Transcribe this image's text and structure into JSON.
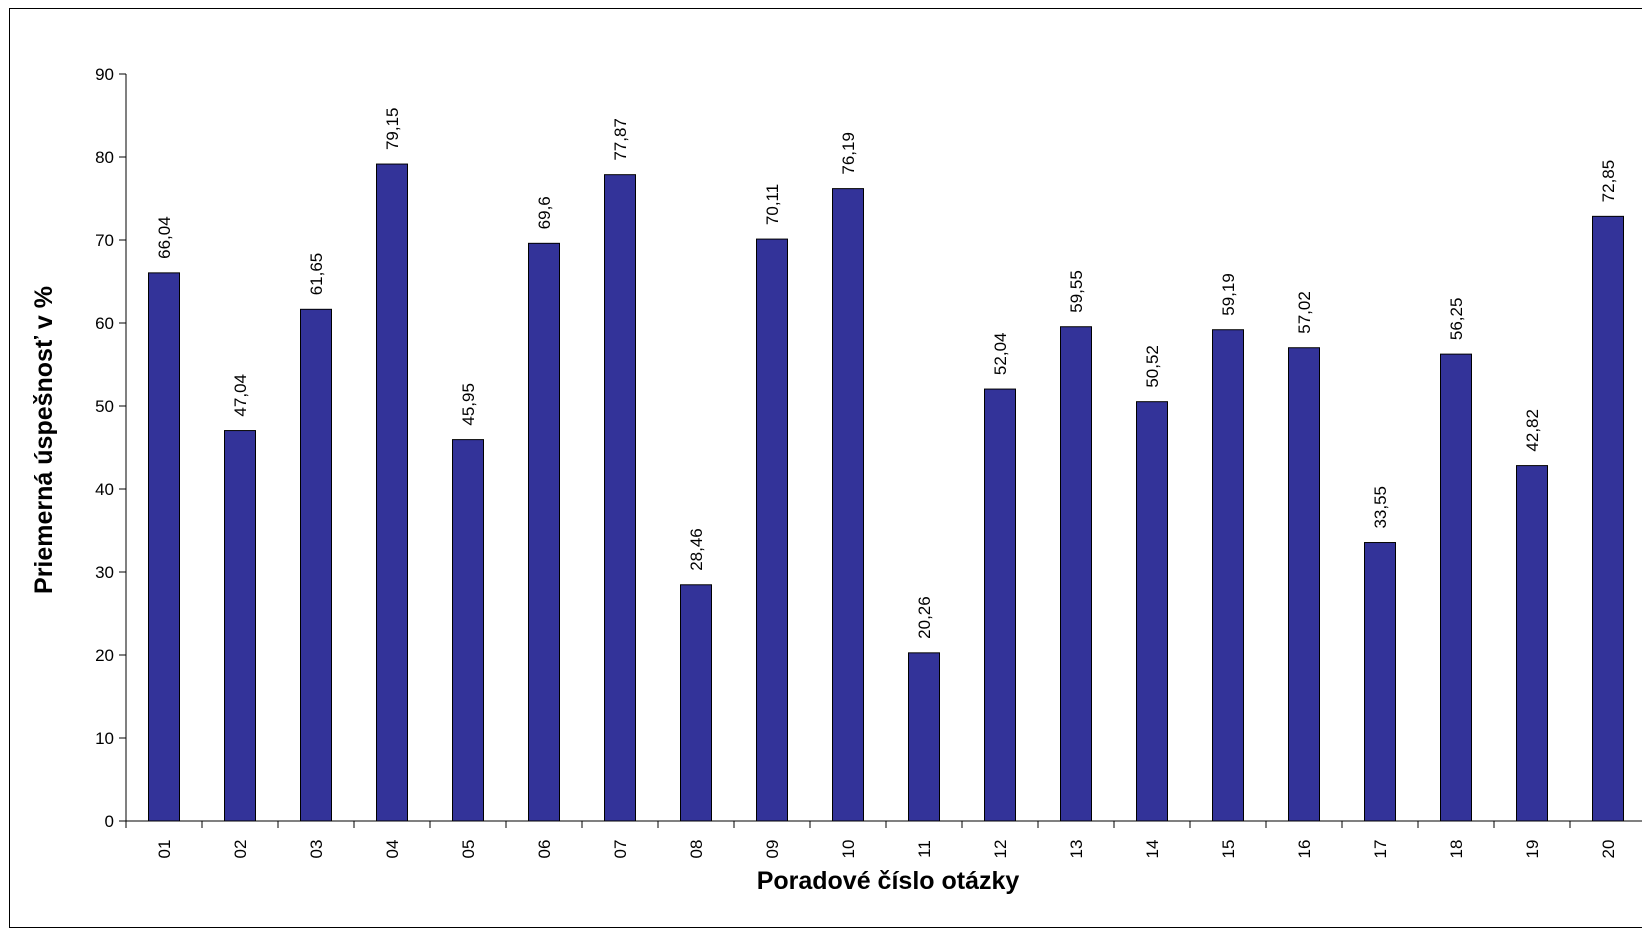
{
  "chart_data": {
    "type": "bar",
    "xlabel": "Poradové číslo otázky",
    "ylabel": "Priemerná úspešnosť v %",
    "ylim": [
      0,
      90
    ],
    "yticks": [
      0,
      10,
      20,
      30,
      40,
      50,
      60,
      70,
      80,
      90
    ],
    "categories": [
      "01",
      "02",
      "03",
      "04",
      "05",
      "06",
      "07",
      "08",
      "09",
      "10",
      "11",
      "12",
      "13",
      "14",
      "15",
      "16",
      "17",
      "18",
      "19",
      "20"
    ],
    "values": [
      66.04,
      47.04,
      61.65,
      79.15,
      45.95,
      69.6,
      77.87,
      28.46,
      70.11,
      76.19,
      20.26,
      52.04,
      59.55,
      50.52,
      59.19,
      57.02,
      33.55,
      56.25,
      42.82,
      72.85
    ],
    "data_labels": [
      "66,04",
      "47,04",
      "61,65",
      "79,15",
      "45,95",
      "69,6",
      "77,87",
      "28,46",
      "70,11",
      "76,19",
      "20,26",
      "52,04",
      "59,55",
      "50,52",
      "59,19",
      "57,02",
      "33,55",
      "56,25",
      "42,82",
      "72,85"
    ],
    "bar_color": "#333399",
    "grid": false,
    "legend": "none"
  }
}
